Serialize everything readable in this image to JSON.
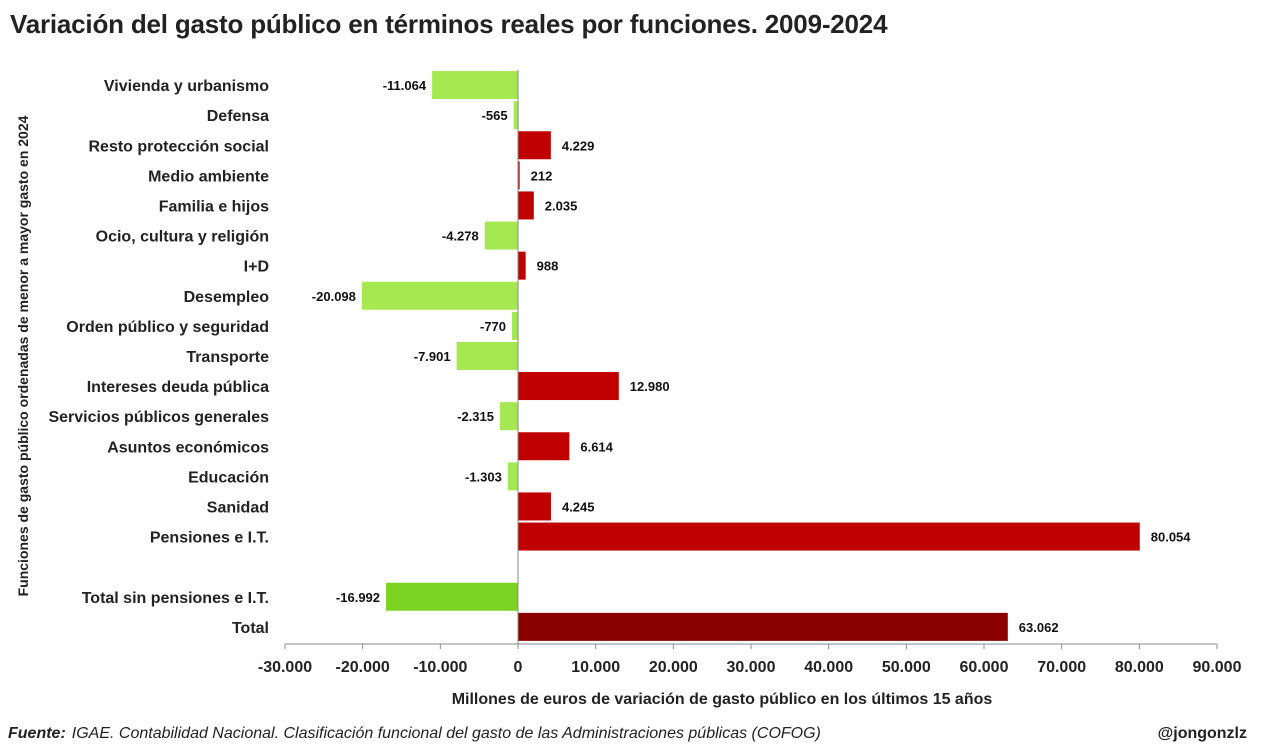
{
  "title": "Variación del gasto público en términos reales por funciones. 2009-2024",
  "source_label": "Fuente:",
  "source_text": "IGAE. Contabilidad Nacional. Clasificación funcional del gasto de las Administraciones públicas (COFOG)",
  "credit": "@jongonzlz",
  "colors": {
    "positive": "#c00000",
    "negative": "#a6e851",
    "total_negative": "#7dd321",
    "total_positive": "#8b0000"
  },
  "chart_data": {
    "type": "bar",
    "orientation": "horizontal",
    "xlabel": "Millones de euros de variación de gasto público en los últimos 15 años",
    "ylabel": "Funciones de gasto público ordenadas de menor a mayor gasto en 2024",
    "xlim": [
      -30000,
      90000
    ],
    "xticks": [
      -30000,
      -20000,
      -10000,
      0,
      10000,
      20000,
      30000,
      40000,
      50000,
      60000,
      70000,
      80000,
      90000
    ],
    "xtick_labels": [
      "-30.000",
      "-20.000",
      "-10.000",
      "0",
      "10.000",
      "20.000",
      "30.000",
      "40.000",
      "50.000",
      "60.000",
      "70.000",
      "80.000",
      "90.000"
    ],
    "categories": [
      "Vivienda y urbanismo",
      "Defensa",
      "Resto protección social",
      "Medio ambiente",
      "Familia e hijos",
      "Ocio, cultura y religión",
      "I+D",
      "Desempleo",
      "Orden público y seguridad",
      "Transporte",
      "Intereses deuda pública",
      "Servicios públicos generales",
      "Asuntos económicos",
      "Educación",
      "Sanidad",
      "Pensiones e I.T.",
      "",
      "Total sin pensiones e I.T.",
      "Total"
    ],
    "values": [
      -11064,
      -565,
      4229,
      212,
      2035,
      -4278,
      988,
      -20098,
      -770,
      -7901,
      12980,
      -2315,
      6614,
      -1303,
      4245,
      80054,
      null,
      -16992,
      63062
    ],
    "value_labels": [
      "-11.064",
      "-565",
      "4.229",
      "212",
      "2.035",
      "-4.278",
      "988",
      "-20.098",
      "-770",
      "-7.901",
      "12.980",
      "-2.315",
      "6.614",
      "-1.303",
      "4.245",
      "80.054",
      "",
      "-16.992",
      "63.062"
    ],
    "grid": false
  }
}
